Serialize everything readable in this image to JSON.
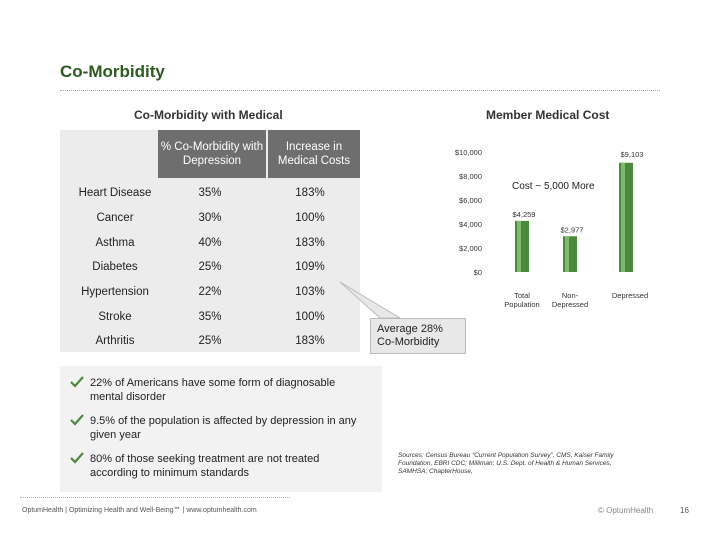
{
  "title": "Co-Morbidity",
  "table": {
    "heading": "Co-Morbidity with Medical",
    "col1": "% Co-Morbidity with Depression",
    "col2": "Increase in Medical Costs",
    "rows": [
      {
        "condition": "Heart Disease",
        "comorbidity": "35%",
        "cost": "183%"
      },
      {
        "condition": "Cancer",
        "comorbidity": "30%",
        "cost": "100%"
      },
      {
        "condition": "Asthma",
        "comorbidity": "40%",
        "cost": "183%"
      },
      {
        "condition": "Diabetes",
        "comorbidity": "25%",
        "cost": "109%"
      },
      {
        "condition": "Hypertension",
        "comorbidity": "22%",
        "cost": "103%"
      },
      {
        "condition": "Stroke",
        "comorbidity": "35%",
        "cost": "100%"
      },
      {
        "condition": "Arthritis",
        "comorbidity": "25%",
        "cost": "183%"
      }
    ]
  },
  "callout": "Average 28% Co-Morbidity",
  "chart_heading": "Member Medical Cost",
  "chart_data": {
    "type": "bar",
    "categories": [
      "Total Population",
      "Non-Depressed",
      "Depressed"
    ],
    "values": [
      4259,
      2977,
      9103
    ],
    "value_labels": [
      "$4,259",
      "$2,977",
      "$9,103"
    ],
    "ytick_labels": [
      "$0",
      "$2,000",
      "$4,000",
      "$6,000",
      "$8,000",
      "$10,000"
    ],
    "ylim": [
      0,
      10000
    ],
    "annotation": "Cost ~ 5,000 More",
    "bar_color": "#4a8a3c"
  },
  "bullets": [
    "22% of Americans have some form of diagnosable mental disorder",
    "9.5% of the population is affected by depression in any given year",
    "80% of those seeking treatment are not treated according to minimum standards"
  ],
  "sources": "Sources: Census Bureau “Current Population Survey”, CMS, Kaiser Family Foundation, EBRI CDC; Milliman; U.S. Dept. of Health & Human Services, SAMHSA; ChapterHouse,",
  "footer": "OptumHealth | Optimizing Health and Well-Being℠ | www.optumhealth.com",
  "copyright": "© OptumHealth",
  "page_number": "16"
}
